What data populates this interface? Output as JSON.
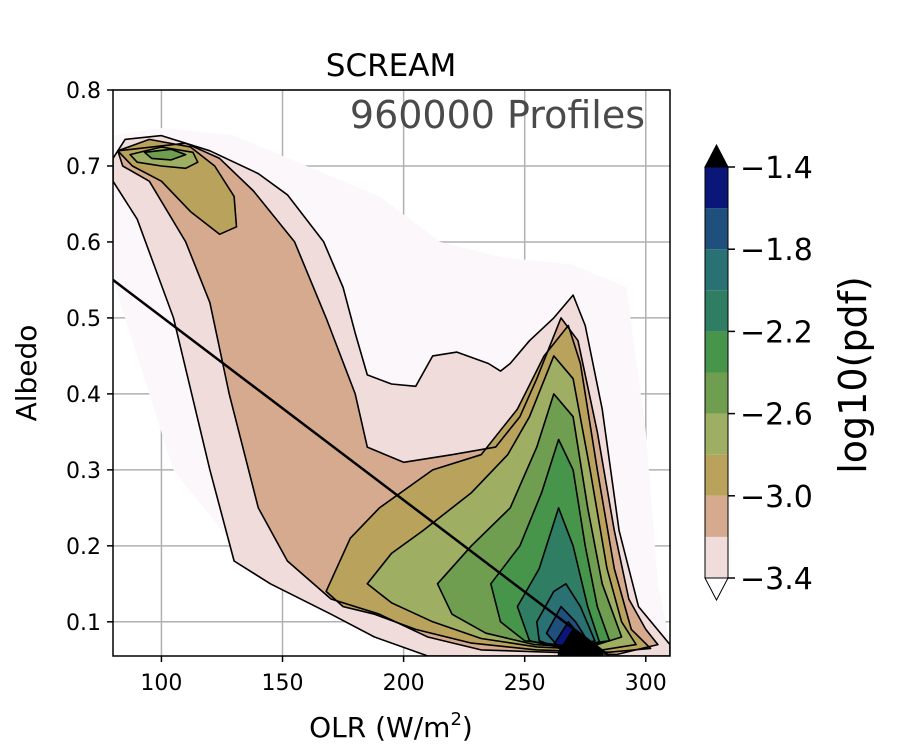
{
  "chart_data": {
    "type": "contour",
    "title": "SCREAM",
    "annotation": "960000 Profiles",
    "xlabel": "OLR (W/m",
    "xlabel_superscript": "2",
    "xlabel_suffix": ")",
    "ylabel": "Albedo",
    "xlim": [
      80,
      310
    ],
    "ylim": [
      0.055,
      0.8
    ],
    "xticks": [
      100,
      150,
      200,
      250,
      300
    ],
    "yticks": [
      0.1,
      0.2,
      0.3,
      0.4,
      0.5,
      0.6,
      0.7,
      0.8
    ],
    "xtick_labels": [
      "100",
      "150",
      "200",
      "250",
      "300"
    ],
    "ytick_labels": [
      "0.1",
      "0.2",
      "0.3",
      "0.4",
      "0.5",
      "0.6",
      "0.7",
      "0.8"
    ],
    "grid": true,
    "colorbar": {
      "label": "log10(pdf)",
      "levels": [
        -3.4,
        -3.2,
        -3.0,
        -2.8,
        -2.6,
        -2.4,
        -2.2,
        -2.0,
        -1.8,
        -1.6,
        -1.4
      ],
      "ticks": [
        -1.4,
        -1.8,
        -2.2,
        -2.6,
        -3.0,
        -3.4
      ],
      "tick_labels": [
        "−1.4",
        "−1.8",
        "−2.2",
        "−2.6",
        "−3.0",
        "−3.4"
      ],
      "colors": [
        "#f1dcdc",
        "#d6aa8e",
        "#b9a25c",
        "#9eae62",
        "#6f9e50",
        "#46954a",
        "#2f7e63",
        "#297173",
        "#1f4f7c",
        "#0b1778"
      ],
      "extend": "both",
      "extend_max_color": "#000000",
      "extend_min_color": "#ffffff"
    },
    "contours": [
      {
        "level": -3.6,
        "points": [
          [
            80,
            0.74
          ],
          [
            100,
            0.75
          ],
          [
            130,
            0.74
          ],
          [
            160,
            0.7
          ],
          [
            190,
            0.66
          ],
          [
            215,
            0.6
          ],
          [
            240,
            0.58
          ],
          [
            270,
            0.57
          ],
          [
            292,
            0.54
          ],
          [
            300,
            0.35
          ],
          [
            305,
            0.15
          ],
          [
            310,
            0.07
          ],
          [
            285,
            0.055
          ],
          [
            240,
            0.055
          ],
          [
            180,
            0.1
          ],
          [
            130,
            0.2
          ],
          [
            105,
            0.3
          ],
          [
            90,
            0.45
          ],
          [
            80,
            0.55
          ]
        ]
      },
      {
        "level": -3.4,
        "points": [
          [
            80,
            0.71
          ],
          [
            85,
            0.735
          ],
          [
            100,
            0.74
          ],
          [
            120,
            0.72
          ],
          [
            140,
            0.69
          ],
          [
            152,
            0.662
          ],
          [
            167,
            0.6
          ],
          [
            175,
            0.54
          ],
          [
            180,
            0.48
          ],
          [
            185,
            0.425
          ],
          [
            195,
            0.413
          ],
          [
            205,
            0.41
          ],
          [
            212,
            0.45
          ],
          [
            222,
            0.455
          ],
          [
            235,
            0.44
          ],
          [
            240,
            0.43
          ],
          [
            244,
            0.44
          ],
          [
            252,
            0.47
          ],
          [
            262,
            0.5
          ],
          [
            270,
            0.53
          ],
          [
            275,
            0.49
          ],
          [
            282,
            0.38
          ],
          [
            289,
            0.22
          ],
          [
            297,
            0.12
          ],
          [
            310,
            0.07
          ],
          [
            310,
            0.055
          ],
          [
            210,
            0.055
          ],
          [
            188,
            0.08
          ],
          [
            170,
            0.11
          ],
          [
            145,
            0.15
          ],
          [
            130,
            0.18
          ],
          [
            120,
            0.3
          ],
          [
            105,
            0.5
          ],
          [
            90,
            0.63
          ],
          [
            80,
            0.68
          ]
        ]
      },
      {
        "level": -3.2,
        "points": [
          [
            82,
            0.72
          ],
          [
            110,
            0.73
          ],
          [
            124,
            0.71
          ],
          [
            138,
            0.667
          ],
          [
            155,
            0.6
          ],
          [
            168,
            0.5
          ],
          [
            180,
            0.4
          ],
          [
            185,
            0.33
          ],
          [
            200,
            0.31
          ],
          [
            220,
            0.32
          ],
          [
            238,
            0.33
          ],
          [
            248,
            0.37
          ],
          [
            255,
            0.42
          ],
          [
            265,
            0.5
          ],
          [
            272,
            0.47
          ],
          [
            280,
            0.35
          ],
          [
            287,
            0.22
          ],
          [
            293,
            0.13
          ],
          [
            300,
            0.09
          ],
          [
            305,
            0.07
          ],
          [
            288,
            0.057
          ],
          [
            232,
            0.063
          ],
          [
            210,
            0.08
          ],
          [
            190,
            0.11
          ],
          [
            170,
            0.13
          ],
          [
            152,
            0.18
          ],
          [
            140,
            0.25
          ],
          [
            128,
            0.4
          ],
          [
            120,
            0.52
          ],
          [
            110,
            0.6
          ],
          [
            95,
            0.68
          ],
          [
            84,
            0.7
          ]
        ]
      },
      {
        "level": -3.0,
        "points": [
          [
            82,
            0.72
          ],
          [
            95,
            0.735
          ],
          [
            112,
            0.725
          ],
          [
            122,
            0.7
          ],
          [
            130,
            0.66
          ],
          [
            131,
            0.62
          ],
          [
            124,
            0.61
          ],
          [
            112,
            0.64
          ],
          [
            100,
            0.68
          ],
          [
            88,
            0.7
          ]
        ]
      },
      {
        "level": -3.0,
        "points": [
          [
            168,
            0.14
          ],
          [
            178,
            0.21
          ],
          [
            190,
            0.25
          ],
          [
            212,
            0.3
          ],
          [
            232,
            0.32
          ],
          [
            247,
            0.38
          ],
          [
            258,
            0.45
          ],
          [
            268,
            0.49
          ],
          [
            273,
            0.44
          ],
          [
            280,
            0.3
          ],
          [
            287,
            0.17
          ],
          [
            294,
            0.09
          ],
          [
            302,
            0.065
          ],
          [
            285,
            0.06
          ],
          [
            255,
            0.063
          ],
          [
            228,
            0.072
          ],
          [
            205,
            0.09
          ],
          [
            188,
            0.11
          ],
          [
            175,
            0.12
          ]
        ]
      },
      {
        "level": -2.8,
        "points": [
          [
            87,
            0.715
          ],
          [
            100,
            0.725
          ],
          [
            113,
            0.718
          ],
          [
            115,
            0.705
          ],
          [
            110,
            0.697
          ],
          [
            100,
            0.7
          ],
          [
            90,
            0.705
          ]
        ]
      },
      {
        "level": -2.8,
        "points": [
          [
            185,
            0.15
          ],
          [
            195,
            0.19
          ],
          [
            208,
            0.22
          ],
          [
            228,
            0.27
          ],
          [
            243,
            0.32
          ],
          [
            252,
            0.37
          ],
          [
            262,
            0.45
          ],
          [
            270,
            0.42
          ],
          [
            277,
            0.3
          ],
          [
            284,
            0.17
          ],
          [
            290,
            0.1
          ],
          [
            296,
            0.07
          ],
          [
            282,
            0.063
          ],
          [
            255,
            0.067
          ],
          [
            232,
            0.078
          ],
          [
            212,
            0.1
          ],
          [
            195,
            0.125
          ]
        ]
      },
      {
        "level": -2.6,
        "points": [
          [
            93,
            0.718
          ],
          [
            104,
            0.722
          ],
          [
            110,
            0.715
          ],
          [
            104,
            0.708
          ],
          [
            96,
            0.71
          ]
        ]
      },
      {
        "level": -2.6,
        "points": [
          [
            214,
            0.15
          ],
          [
            228,
            0.2
          ],
          [
            244,
            0.25
          ],
          [
            255,
            0.33
          ],
          [
            262,
            0.4
          ],
          [
            270,
            0.37
          ],
          [
            276,
            0.25
          ],
          [
            282,
            0.15
          ],
          [
            290,
            0.08
          ],
          [
            276,
            0.066
          ],
          [
            254,
            0.07
          ],
          [
            234,
            0.085
          ],
          [
            220,
            0.11
          ]
        ]
      },
      {
        "level": -2.4,
        "points": [
          [
            236,
            0.15
          ],
          [
            248,
            0.2
          ],
          [
            257,
            0.27
          ],
          [
            264,
            0.34
          ],
          [
            270,
            0.3
          ],
          [
            275,
            0.2
          ],
          [
            280,
            0.12
          ],
          [
            285,
            0.075
          ],
          [
            268,
            0.068
          ],
          [
            250,
            0.075
          ],
          [
            240,
            0.1
          ]
        ]
      },
      {
        "level": -2.2,
        "points": [
          [
            247,
            0.12
          ],
          [
            256,
            0.17
          ],
          [
            264,
            0.25
          ],
          [
            270,
            0.2
          ],
          [
            276,
            0.12
          ],
          [
            281,
            0.072
          ],
          [
            265,
            0.066
          ],
          [
            252,
            0.075
          ]
        ]
      },
      {
        "level": -2.0,
        "points": [
          [
            255,
            0.1
          ],
          [
            262,
            0.14
          ],
          [
            267,
            0.15
          ],
          [
            273,
            0.12
          ],
          [
            279,
            0.075
          ],
          [
            266,
            0.063
          ],
          [
            256,
            0.075
          ]
        ]
      },
      {
        "level": -1.8,
        "points": [
          [
            259,
            0.085
          ],
          [
            265,
            0.12
          ],
          [
            271,
            0.1
          ],
          [
            277,
            0.07
          ],
          [
            266,
            0.06
          ]
        ]
      },
      {
        "level": -1.6,
        "points": [
          [
            262,
            0.07
          ],
          [
            268,
            0.1
          ],
          [
            276,
            0.07
          ],
          [
            268,
            0.057
          ]
        ]
      },
      {
        "level": -1.4,
        "points": [
          [
            264,
            0.06
          ],
          [
            270,
            0.09
          ],
          [
            282,
            0.06
          ],
          [
            282,
            0.055
          ],
          [
            264,
            0.055
          ]
        ]
      }
    ],
    "reference_line": {
      "x": [
        80,
        285
      ],
      "y": [
        0.55,
        0.055
      ]
    }
  }
}
